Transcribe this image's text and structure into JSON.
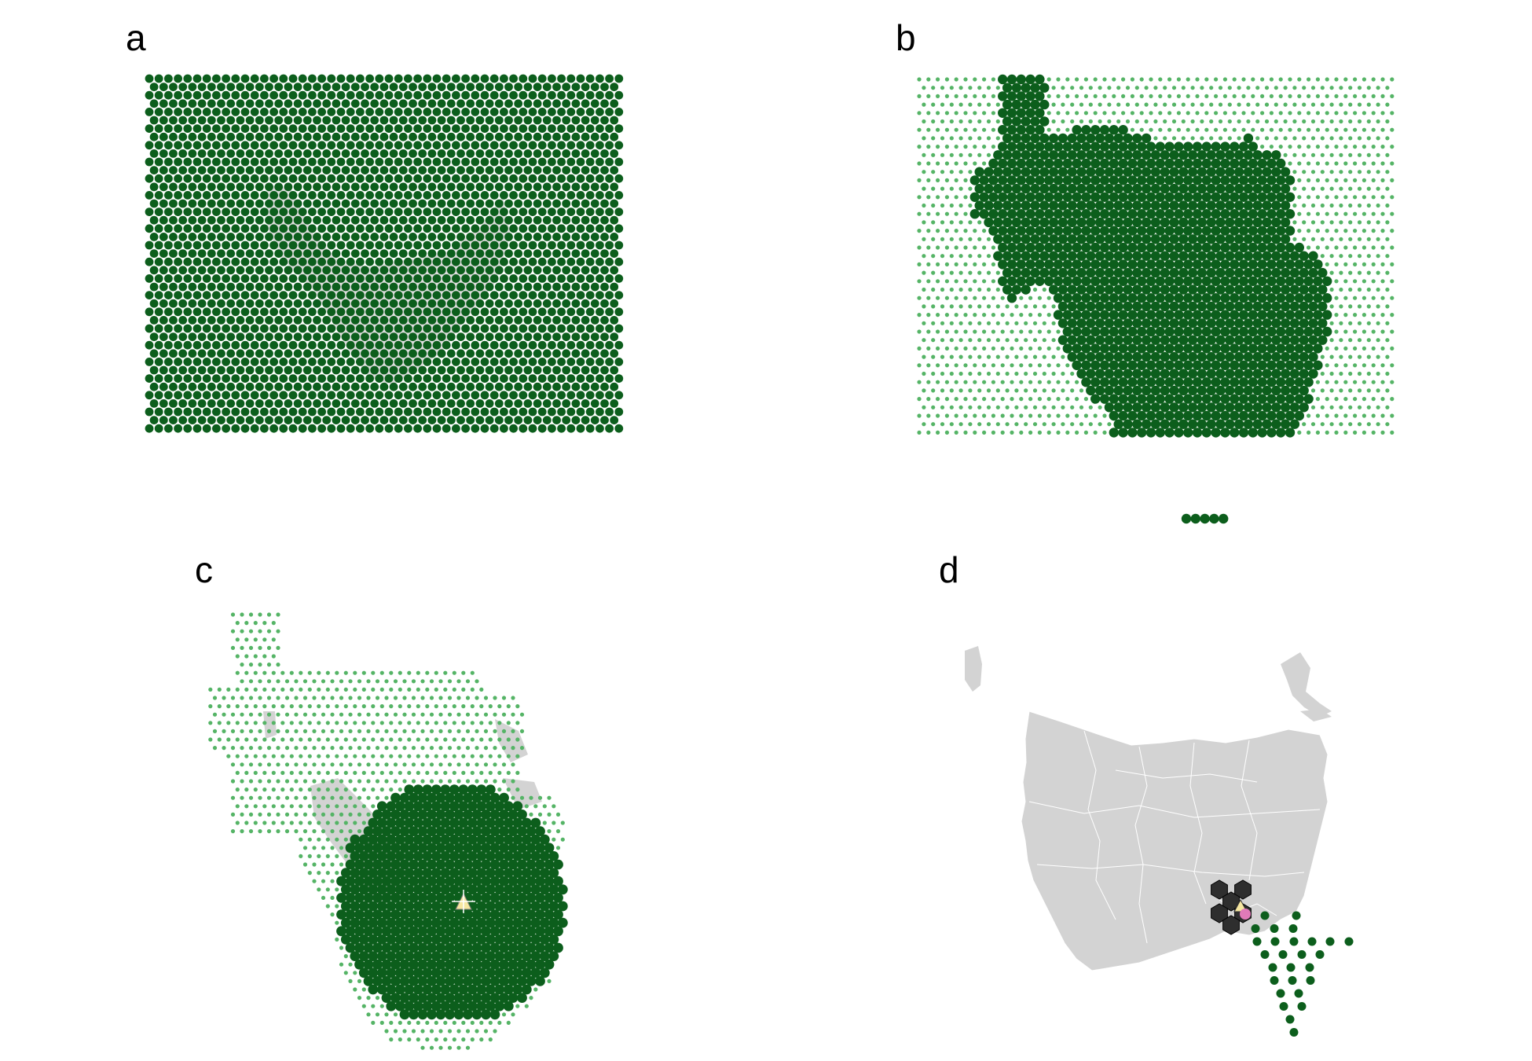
{
  "figure": {
    "panels": [
      {
        "id": "a",
        "label": "a"
      },
      {
        "id": "b",
        "label": "b"
      },
      {
        "id": "c",
        "label": "c"
      },
      {
        "id": "d",
        "label": "d"
      }
    ]
  },
  "colors": {
    "selected_dot": "#0c5e1c",
    "unselected_dot": "#55b466",
    "land": "#d3d3d3",
    "land_border": "#ffffff",
    "highlight_hex": "#2e2e2e",
    "centroid_marker": "#f5e6a0",
    "point_marker": "#e07ab8",
    "background": "#ffffff"
  }
}
